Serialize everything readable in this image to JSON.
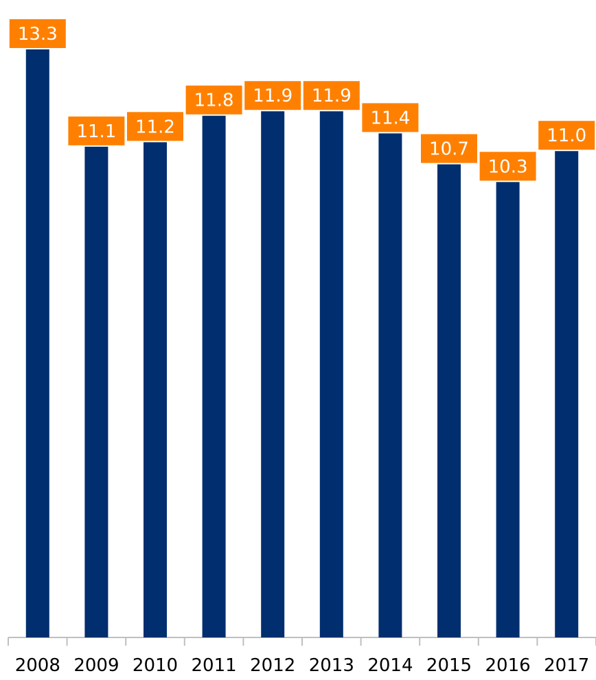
{
  "chart_data": {
    "type": "bar",
    "categories": [
      "2008",
      "2009",
      "2010",
      "2011",
      "2012",
      "2013",
      "2014",
      "2015",
      "2016",
      "2017"
    ],
    "values": [
      13.3,
      11.1,
      11.2,
      11.8,
      11.9,
      11.9,
      11.4,
      10.7,
      10.3,
      11.0
    ],
    "data_labels": [
      "13.3",
      "11.1",
      "11.2",
      "11.8",
      "11.9",
      "11.9",
      "11.4",
      "10.7",
      "10.3",
      "11.0"
    ],
    "ylim": [
      0,
      13.3
    ],
    "grid": false,
    "legend": "none",
    "colors": {
      "bar": "#002e6e",
      "label_bg": "#ff8000",
      "label_text": "#ffffff",
      "axis": "#bfbfbf"
    }
  }
}
